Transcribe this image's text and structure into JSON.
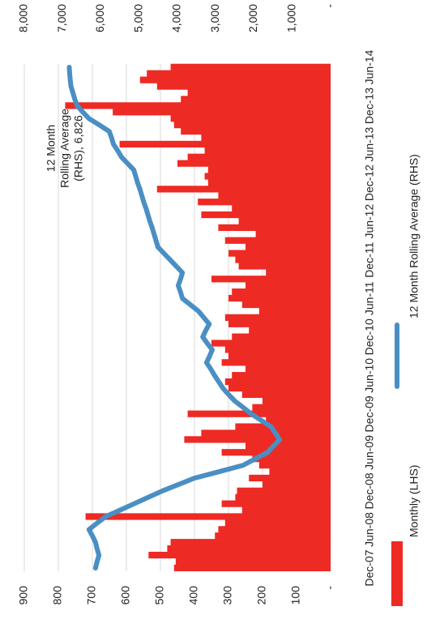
{
  "chart_data": {
    "type": "bar",
    "categories": [
      "Dec-07",
      null,
      null,
      null,
      null,
      null,
      "Jun-08",
      null,
      null,
      null,
      null,
      null,
      "Dec-08",
      null,
      null,
      null,
      null,
      null,
      "Jun-09",
      null,
      null,
      null,
      null,
      null,
      "Dec-09",
      null,
      null,
      null,
      null,
      null,
      "Jun-10",
      null,
      null,
      null,
      null,
      null,
      "Dec-10",
      null,
      null,
      null,
      null,
      null,
      "Jun-11",
      null,
      null,
      null,
      null,
      null,
      "Dec-11",
      null,
      null,
      null,
      null,
      null,
      "Jun-12",
      null,
      null,
      null,
      null,
      null,
      "Dec-12",
      null,
      null,
      null,
      null,
      null,
      "Jun-13",
      null,
      null,
      null,
      null,
      null,
      "Dec-13",
      null,
      null,
      null,
      null,
      null,
      "Jun-14"
    ],
    "series": [
      {
        "name": "Monthly (LHS)",
        "type": "bar",
        "color": "#ee2a24",
        "values": [
          460,
          455,
          535,
          480,
          470,
          340,
          330,
          310,
          720,
          260,
          320,
          280,
          275,
          200,
          240,
          180,
          210,
          230,
          320,
          250,
          430,
          380,
          280,
          190,
          420,
          230,
          200,
          260,
          300,
          310,
          290,
          250,
          320,
          300,
          310,
          350,
          290,
          240,
          300,
          310,
          210,
          260,
          300,
          290,
          250,
          350,
          190,
          270,
          280,
          300,
          250,
          310,
          220,
          330,
          270,
          380,
          290,
          390,
          330,
          510,
          360,
          370,
          360,
          450,
          420,
          370,
          620,
          380,
          440,
          460,
          470,
          640,
          780,
          440,
          420,
          510,
          560,
          540,
          470
        ]
      },
      {
        "name": "12 Month Rolling Average (RHS)",
        "type": "line",
        "axis": "y2",
        "color": "#4a8fc4",
        "values": [
          6140,
          6100,
          6050,
          6100,
          6140,
          6220,
          6310,
          6100,
          5880,
          5510,
          5140,
          4770,
          4400,
          3980,
          3560,
          2920,
          2290,
          1970,
          1650,
          1490,
          1330,
          1440,
          1550,
          1810,
          2070,
          2280,
          2500,
          2660,
          2810,
          2920,
          3030,
          3130,
          3240,
          3160,
          3090,
          3220,
          3340,
          3260,
          3170,
          3310,
          3450,
          3660,
          3870,
          3920,
          3980,
          3920,
          3870,
          4030,
          4190,
          4350,
          4510,
          4560,
          4610,
          4660,
          4720,
          4770,
          4820,
          4880,
          4930,
          4980,
          5040,
          5090,
          5140,
          5300,
          5460,
          5560,
          5670,
          5720,
          5780,
          6040,
          6310,
          6470,
          6620,
          6680,
          6730,
          6780,
          6800,
          6815,
          6826
        ]
      }
    ],
    "ylim": [
      0,
      900
    ],
    "yticks": [
      {
        "value": 0,
        "label": "-"
      },
      100,
      200,
      300,
      400,
      500,
      600,
      700,
      800,
      900
    ],
    "y2lim": [
      0,
      8000
    ],
    "y2ticks": [
      {
        "value": 0,
        "label": "-"
      },
      {
        "value": 1000,
        "label": "1,000"
      },
      {
        "value": 2000,
        "label": "2,000"
      },
      {
        "value": 3000,
        "label": "3,000"
      },
      {
        "value": 4000,
        "label": "4,000"
      },
      {
        "value": 5000,
        "label": "5,000"
      },
      {
        "value": 6000,
        "label": "6,000"
      },
      {
        "value": 7000,
        "label": "7,000"
      },
      {
        "value": 8000,
        "label": "8,000"
      }
    ],
    "grid": true,
    "annotation": [
      "12 Month",
      "Rolling Average",
      "(RHS), 6,826"
    ]
  }
}
